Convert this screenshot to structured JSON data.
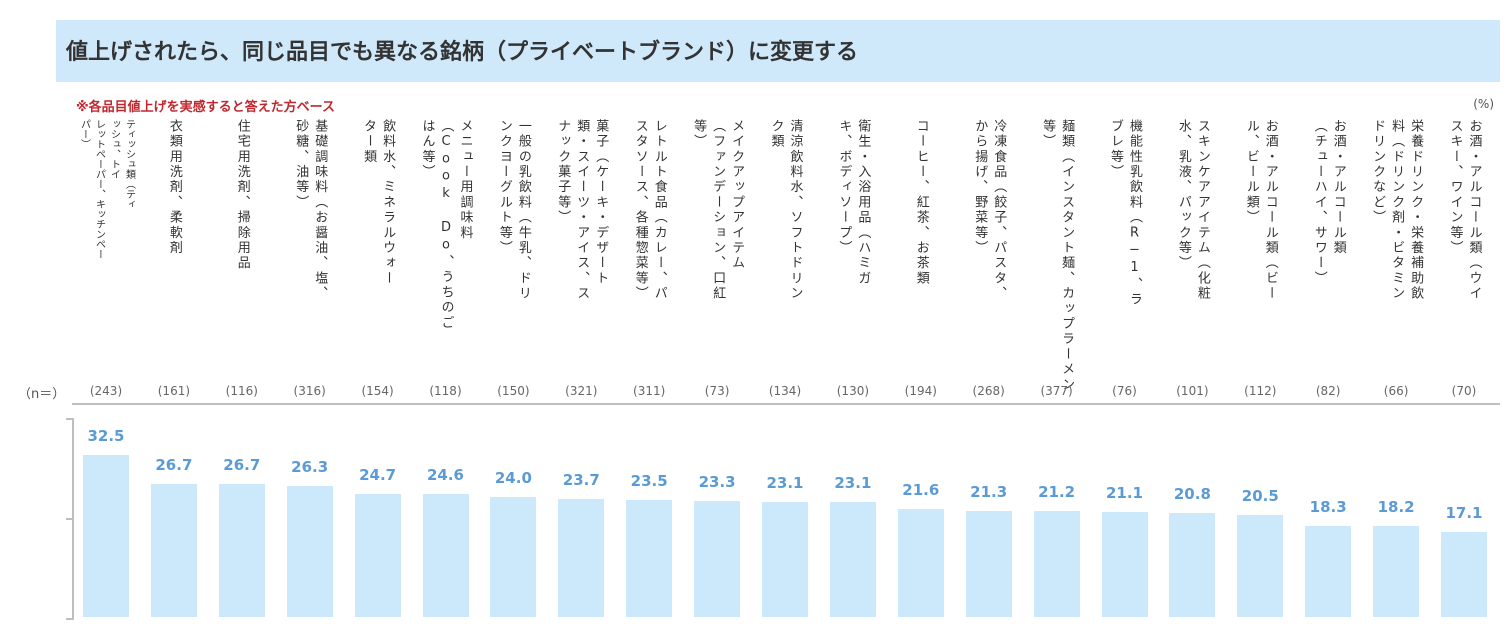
{
  "title": "値上げされたら、同じ品目でも異なる銘柄（プライベートブランド）に変更する",
  "note": "※各品目値上げを実感すると答えた方ベース",
  "unit": "(%)",
  "n_label": "（n＝）",
  "colors": {
    "bar": "#cce9fb",
    "value_label": "#5b9bd5",
    "title_bg": "#cfe9fb",
    "note": "#c0282f"
  },
  "chart_data": {
    "type": "bar",
    "title": "値上げされたら、同じ品目でも異なる銘柄（プライベートブランド）に変更する",
    "ylim": [
      0,
      40
    ],
    "grid": false,
    "categories": [
      "ティッシュ類（ティッシュ、トイレットペーパー、キッチンペーパー）",
      "衣類用洗剤、柔軟剤",
      "住宅用洗剤、掃除用品",
      "基礎調味料（お醤油、塩、砂糖、油等）",
      "飲料水、ミネラルウォーター類",
      "メニュー用調味料（Cook Do、うちのごはん等）",
      "一般の乳飲料（牛乳、ドリンクヨーグルト等）",
      "菓子（ケーキ・デザート類・スイーツ・アイス、スナック菓子等）",
      "レトルト食品（カレー、パスタソース、各種惣菜等）",
      "メイクアップアイテム（ファンデーション、口紅等）",
      "清涼飲料水、ソフトドリンク類",
      "衛生・入浴用品（ハミガキ、ボディソープ）",
      "コーヒー、紅茶、お茶類",
      "冷凍食品（餃子、パスタ、から揚げ、野菜等）",
      "麺類（インスタント麺、カップラーメン等）",
      "機能性乳飲料（R−1、ラブレ等）",
      "スキンケアアイテム（化粧水、乳液、パック等）",
      "お酒・アルコール類（ビール、ビール類）",
      "お酒・アルコール類（チューハイ、サワー）",
      "栄養ドリンク・栄養補助飲料（ドリンク剤、ビタミンドリンクなど）",
      "お酒・アルコール類（ウイスキー、ワイン等）"
    ],
    "category_columns": [
      [
        "ティッシュ類（ティ",
        "ッシュ、トイ",
        "レットペーパー、キッチンペー",
        "パー）"
      ],
      [
        "衣類用洗剤、柔軟剤"
      ],
      [
        "住宅用洗剤、掃除用品"
      ],
      [
        "基礎調味料（お醤油、塩、",
        "砂糖、油等）"
      ],
      [
        "飲料水、ミネラルウォー",
        "ター類"
      ],
      [
        "メニュー用調味料",
        "（Cook Do、うちのご",
        "はん等）"
      ],
      [
        "一般の乳飲料（牛乳、ドリ",
        "ンクヨーグルト等）"
      ],
      [
        "菓子（ケーキ・デザート",
        "類・スイーツ・アイス、ス",
        "ナック菓子等）"
      ],
      [
        "レトルト食品（カレー、パ",
        "スタソース、各種惣菜等）"
      ],
      [
        "メイクアップアイテム",
        "（ファンデーション、口紅",
        "等）"
      ],
      [
        "清涼飲料水、ソフトドリン",
        "ク類"
      ],
      [
        "衛生・入浴用品（ハミガ",
        "キ、ボディソープ）"
      ],
      [
        "コーヒー、紅茶、お茶類"
      ],
      [
        "冷凍食品（餃子、パスタ、",
        "から揚げ、野菜等）"
      ],
      [
        "麺類（インスタント麺、カップラーメン",
        "等）"
      ],
      [
        "機能性乳飲料（R−1、ラ",
        "ブレ等）"
      ],
      [
        "スキンケアアイテム（化粧",
        "水、乳液、パック等）"
      ],
      [
        "お酒・アルコール類（ビー",
        "ル、ビール類）"
      ],
      [
        "お酒・アルコール類",
        "（チューハイ、サワー）"
      ],
      [
        "栄養ドリンク・栄養補助飲",
        "料（ドリンク剤・ビタミン",
        "ドリンクなど）"
      ],
      [
        "お酒・アルコール類（ウイ",
        "スキー、ワイン等）"
      ]
    ],
    "n": [
      "(243)",
      "(161)",
      "(116)",
      "(316)",
      "(154)",
      "(118)",
      "(150)",
      "(321)",
      "(311)",
      "(73)",
      "(134)",
      "(130)",
      "(194)",
      "(268)",
      "(377)",
      "(76)",
      "(101)",
      "(112)",
      "(82)",
      "(66)",
      "(70)"
    ],
    "values": [
      32.5,
      26.7,
      26.7,
      26.3,
      24.7,
      24.6,
      24.0,
      23.7,
      23.5,
      23.3,
      23.1,
      23.1,
      21.6,
      21.3,
      21.2,
      21.1,
      20.8,
      20.5,
      18.3,
      18.2,
      17.1
    ],
    "value_labels": [
      "32.5",
      "26.7",
      "26.7",
      "26.3",
      "24.7",
      "24.6",
      "24.0",
      "23.7",
      "23.5",
      "23.3",
      "23.1",
      "23.1",
      "21.6",
      "21.3",
      "21.2",
      "21.1",
      "20.8",
      "20.5",
      "18.3",
      "18.2",
      "17.1"
    ]
  }
}
